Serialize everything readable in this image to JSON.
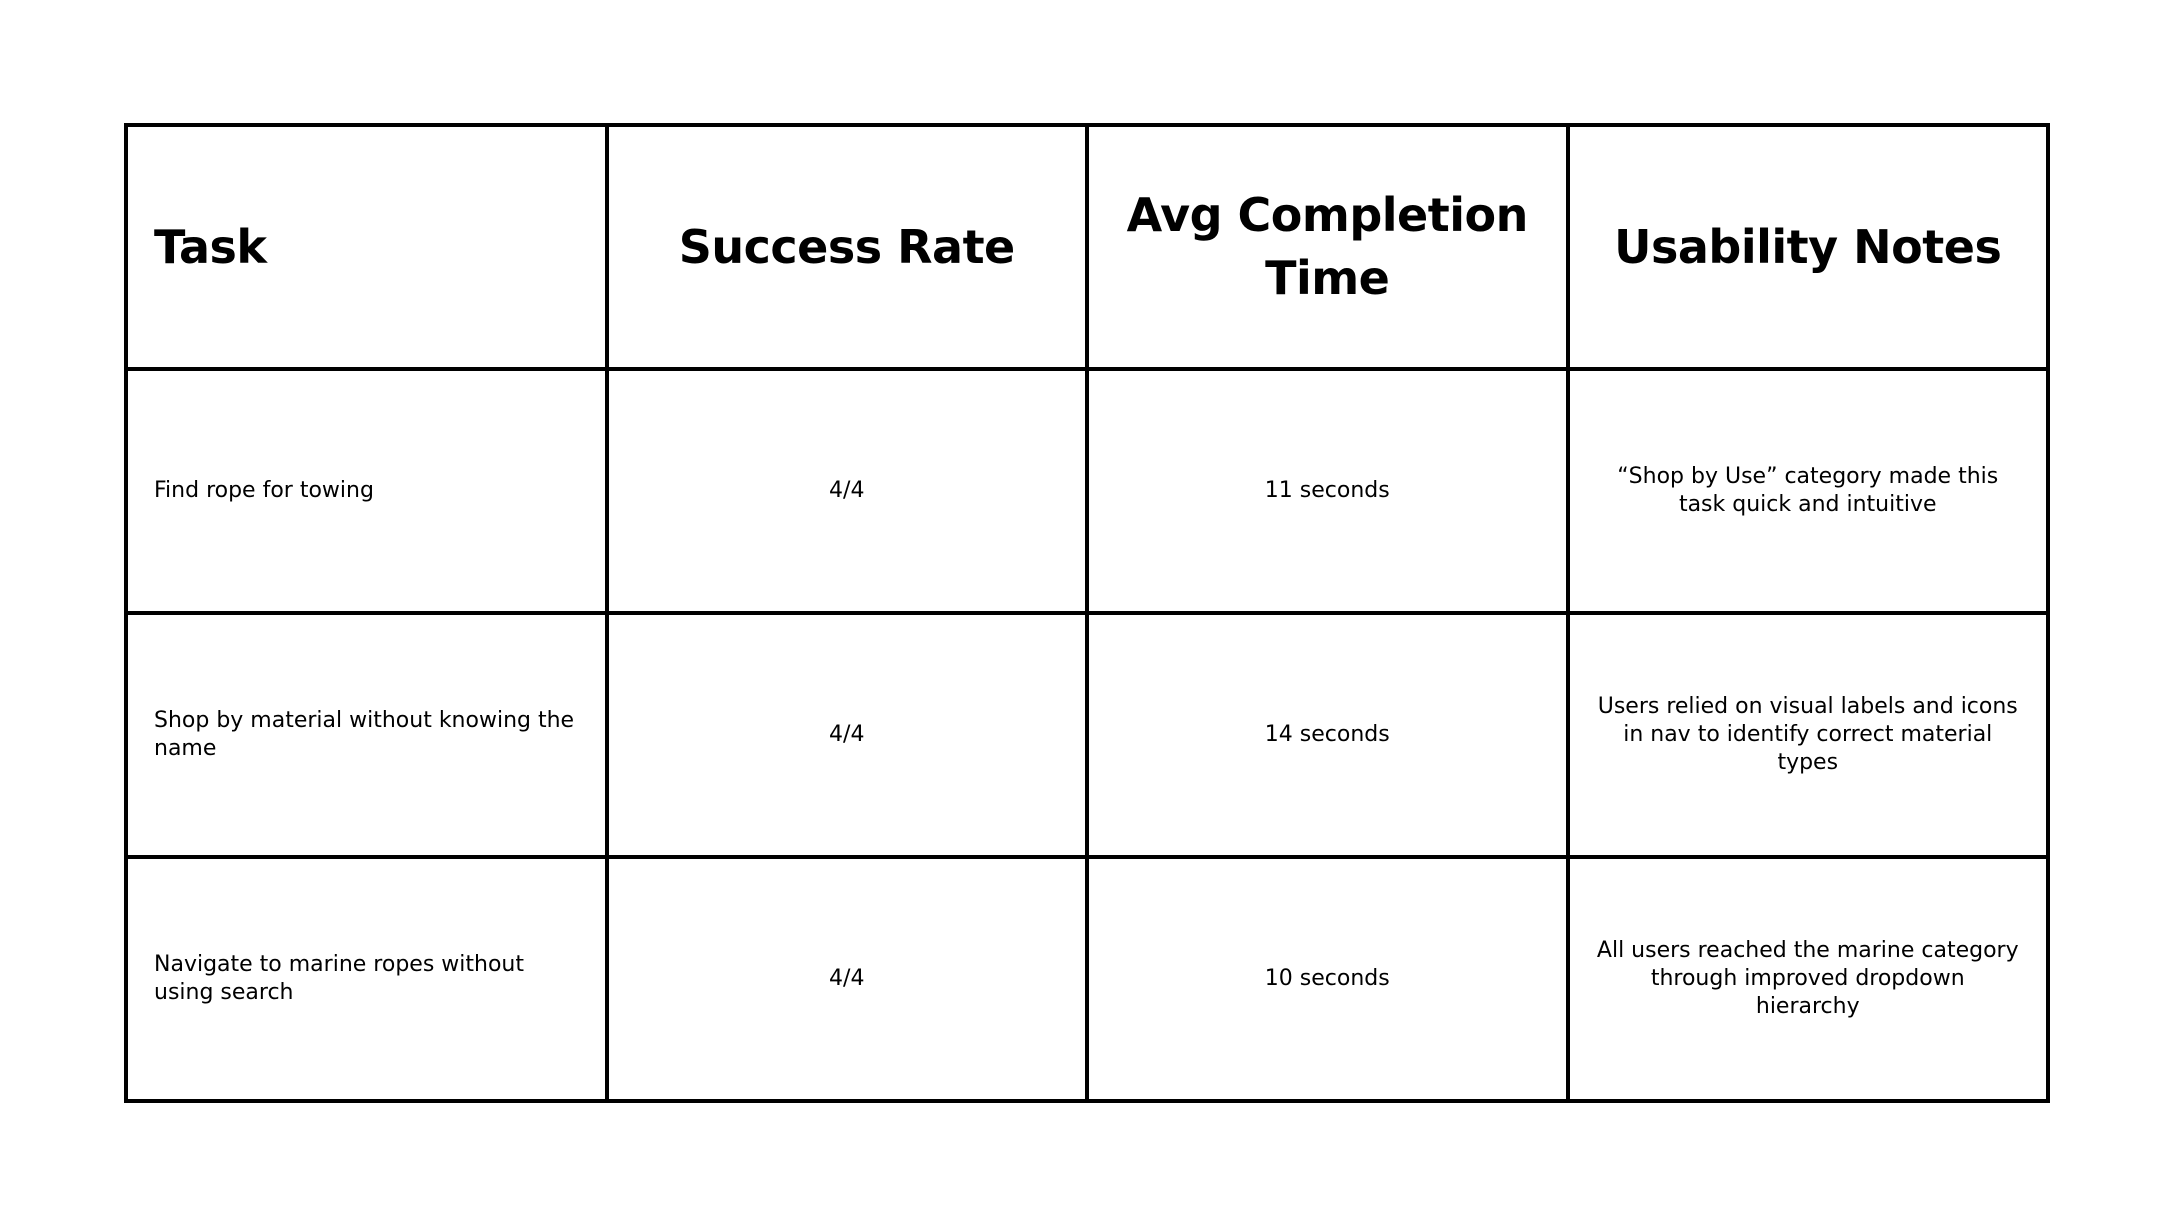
{
  "table": {
    "headers": [
      "Task",
      "Success Rate",
      "Avg Completion Time",
      "Usability Notes"
    ],
    "rows": [
      {
        "task": "Find rope for towing",
        "success_rate": "4/4",
        "avg_completion_time": "11 seconds",
        "usability_notes": "“Shop by Use” category made this task quick and intuitive"
      },
      {
        "task": "Shop by material without knowing the name",
        "success_rate": "4/4",
        "avg_completion_time": "14 seconds",
        "usability_notes": "Users relied on visual labels and icons in nav to identify correct material types"
      },
      {
        "task": "Navigate to marine ropes without using search",
        "success_rate": "4/4",
        "avg_completion_time": "10 seconds",
        "usability_notes": "All users reached the marine category through improved dropdown hierarchy"
      }
    ]
  }
}
